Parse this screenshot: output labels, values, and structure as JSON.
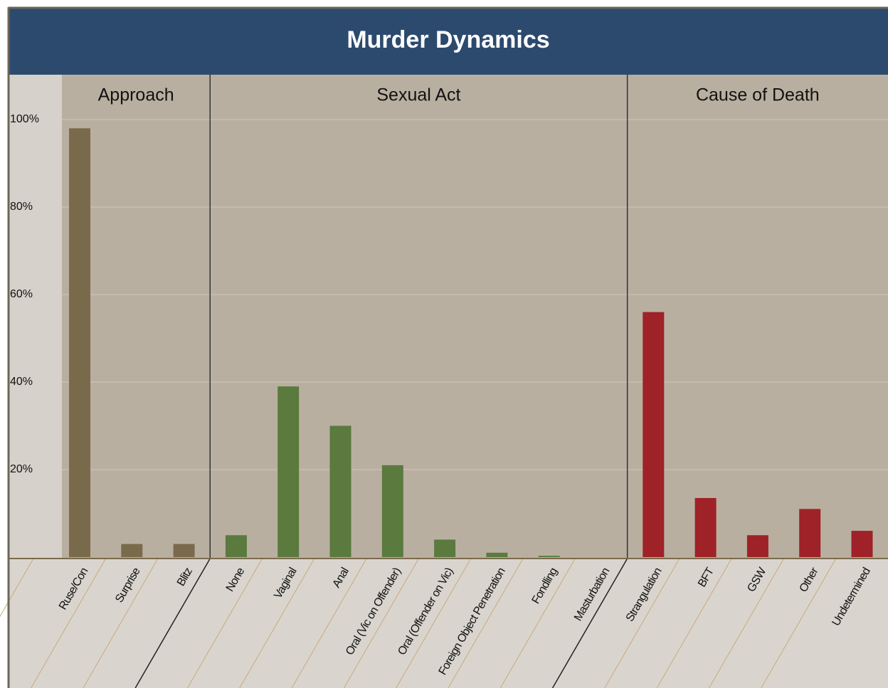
{
  "chart_data": {
    "type": "bar",
    "title": "Murder Dynamics",
    "ylim": [
      0,
      100
    ],
    "yticks": [
      {
        "value": 20,
        "label": "20%"
      },
      {
        "value": 40,
        "label": "40%"
      },
      {
        "value": 60,
        "label": "60%"
      },
      {
        "value": 80,
        "label": "80%"
      },
      {
        "value": 100,
        "label": "100%"
      }
    ],
    "grid": true,
    "groups": [
      {
        "name": "Approach",
        "color": "#7a6a4c",
        "categories": [
          "Ruse/Con",
          "Surprise",
          "Blitz"
        ],
        "values": [
          98,
          3,
          3
        ]
      },
      {
        "name": "Sexual Act",
        "color": "#5a7a3e",
        "categories": [
          "None",
          "Vaginal",
          "Anal",
          "Oral (Vic on Offender)",
          "Oral (Offender on Vic)",
          "Foreign Object Penetration",
          "Fondling",
          "Masturbation"
        ],
        "values": [
          5,
          39,
          30,
          21,
          4,
          1,
          0.3,
          0
        ]
      },
      {
        "name": "Cause of Death",
        "color": "#9e2227",
        "categories": [
          "Strangulation",
          "BFT",
          "GSW",
          "Other",
          "Undetermined"
        ],
        "values": [
          56,
          13.5,
          5,
          11,
          6
        ]
      }
    ]
  }
}
